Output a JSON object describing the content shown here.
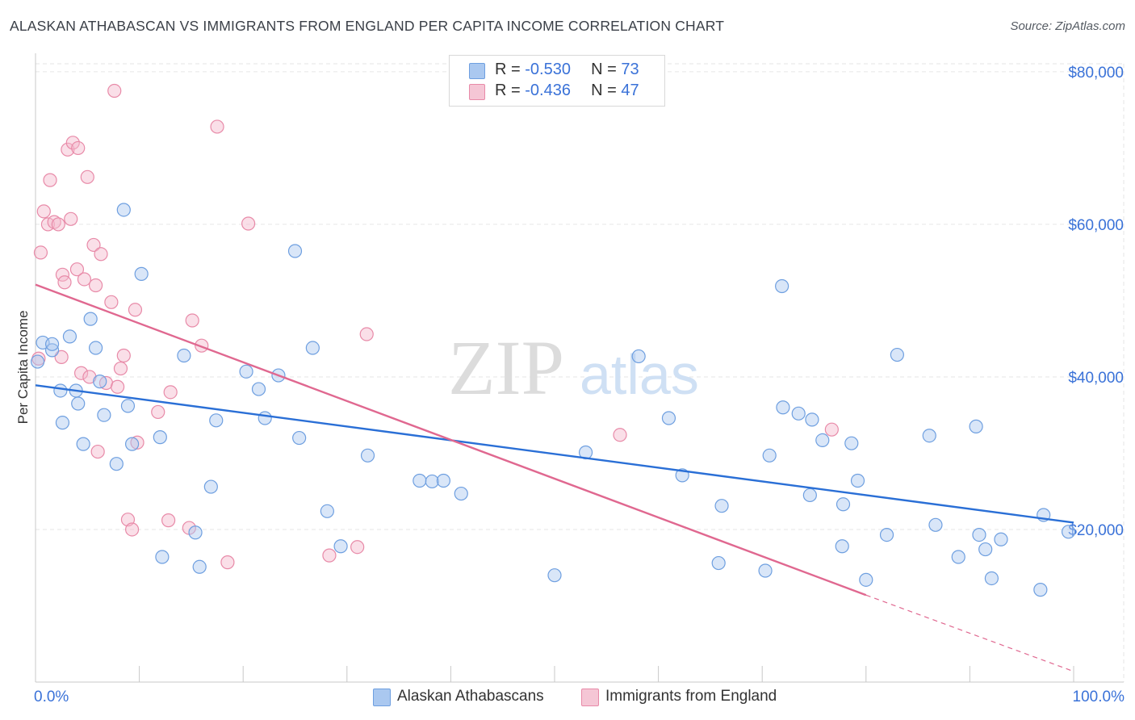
{
  "title": "ALASKAN ATHABASCAN VS IMMIGRANTS FROM ENGLAND PER CAPITA INCOME CORRELATION CHART",
  "source": "Source: ZipAtlas.com",
  "watermark": {
    "zip": "ZIP",
    "atlas": "atlas"
  },
  "legend": {
    "series1": {
      "r_label": "R = ",
      "r_value": "-0.530",
      "n_label": "N = ",
      "n_value": "73"
    },
    "series2": {
      "r_label": "R = ",
      "r_value": "-0.436",
      "n_label": "N = ",
      "n_value": "47"
    }
  },
  "colors": {
    "blue_fill": "#aac8f0",
    "blue_stroke": "#6e9fe0",
    "blue_line": "#2a6fd6",
    "pink_fill": "#f5b8cb",
    "pink_stroke": "#e88aa8",
    "pink_line": "#e06890",
    "axis_label": "#3a72d8",
    "grid": "#e6e6e6"
  },
  "chart_data": {
    "type": "scatter",
    "title": "ALASKAN ATHABASCAN VS IMMIGRANTS FROM ENGLAND PER CAPITA INCOME CORRELATION CHART",
    "xlabel": "",
    "ylabel": "Per Capita Income",
    "xlim": [
      0,
      100
    ],
    "ylim": [
      0,
      82000
    ],
    "x_tick_labels": [
      "0.0%",
      "100.0%"
    ],
    "y_ticks": [
      20000,
      40000,
      60000,
      80000
    ],
    "y_tick_labels": [
      "$20,000",
      "$40,000",
      "$60,000",
      "$80,000"
    ],
    "series": [
      {
        "name": "Alaskan Athabascans",
        "color": "blue",
        "trend": {
          "x": [
            0,
            100
          ],
          "y": [
            38900,
            20900
          ]
        },
        "points": [
          [
            0.2,
            42000
          ],
          [
            0.7,
            44500
          ],
          [
            1.6,
            43500
          ],
          [
            1.6,
            44300
          ],
          [
            2.4,
            38200
          ],
          [
            2.6,
            34000
          ],
          [
            3.3,
            45300
          ],
          [
            3.9,
            38200
          ],
          [
            4.1,
            36500
          ],
          [
            4.6,
            31200
          ],
          [
            5.3,
            47600
          ],
          [
            5.8,
            43800
          ],
          [
            6.2,
            39400
          ],
          [
            6.6,
            35000
          ],
          [
            7.8,
            28600
          ],
          [
            8.5,
            61900
          ],
          [
            8.9,
            36200
          ],
          [
            9.3,
            31200
          ],
          [
            10.2,
            53500
          ],
          [
            12.0,
            32100
          ],
          [
            12.2,
            16400
          ],
          [
            14.3,
            42800
          ],
          [
            15.4,
            19600
          ],
          [
            15.8,
            15100
          ],
          [
            16.9,
            25600
          ],
          [
            17.4,
            34300
          ],
          [
            20.3,
            40700
          ],
          [
            21.5,
            38400
          ],
          [
            22.1,
            34600
          ],
          [
            23.4,
            40200
          ],
          [
            25.0,
            56500
          ],
          [
            25.4,
            32000
          ],
          [
            26.7,
            43800
          ],
          [
            28.1,
            22400
          ],
          [
            29.4,
            17800
          ],
          [
            32.0,
            29700
          ],
          [
            37.0,
            26400
          ],
          [
            38.2,
            26300
          ],
          [
            39.3,
            26400
          ],
          [
            41.0,
            24700
          ],
          [
            50.0,
            14000
          ],
          [
            53.0,
            30100
          ],
          [
            58.1,
            42700
          ],
          [
            61.0,
            34600
          ],
          [
            62.3,
            27100
          ],
          [
            65.8,
            15600
          ],
          [
            66.1,
            23100
          ],
          [
            70.3,
            14600
          ],
          [
            70.7,
            29700
          ],
          [
            71.9,
            51900
          ],
          [
            72.0,
            36000
          ],
          [
            73.5,
            35200
          ],
          [
            74.6,
            24500
          ],
          [
            74.8,
            34400
          ],
          [
            75.8,
            31700
          ],
          [
            77.7,
            17800
          ],
          [
            77.8,
            23300
          ],
          [
            78.6,
            31300
          ],
          [
            79.2,
            26400
          ],
          [
            80.0,
            13400
          ],
          [
            82.0,
            19300
          ],
          [
            83.0,
            42900
          ],
          [
            86.1,
            32300
          ],
          [
            86.7,
            20600
          ],
          [
            88.9,
            16400
          ],
          [
            90.6,
            33500
          ],
          [
            90.9,
            19300
          ],
          [
            91.5,
            17400
          ],
          [
            92.1,
            13600
          ],
          [
            93.0,
            18700
          ],
          [
            96.8,
            12100
          ],
          [
            97.1,
            21900
          ],
          [
            99.5,
            19700
          ]
        ]
      },
      {
        "name": "Immigrants from England",
        "color": "pink",
        "trend": {
          "x": [
            0,
            80
          ],
          "y": [
            52100,
            11400
          ]
        },
        "trend_ext": {
          "x": [
            80,
            100
          ],
          "y": [
            11400,
            1400
          ]
        },
        "points": [
          [
            0.3,
            42400
          ],
          [
            0.5,
            56300
          ],
          [
            0.8,
            61700
          ],
          [
            1.2,
            60000
          ],
          [
            1.4,
            65800
          ],
          [
            1.8,
            60300
          ],
          [
            2.2,
            60000
          ],
          [
            2.5,
            42600
          ],
          [
            2.6,
            53400
          ],
          [
            2.8,
            52400
          ],
          [
            3.1,
            69800
          ],
          [
            3.4,
            60700
          ],
          [
            3.6,
            70700
          ],
          [
            4.0,
            54100
          ],
          [
            4.1,
            70000
          ],
          [
            4.4,
            40500
          ],
          [
            4.7,
            52800
          ],
          [
            5.0,
            66200
          ],
          [
            5.2,
            40000
          ],
          [
            5.6,
            57300
          ],
          [
            5.8,
            52000
          ],
          [
            6.0,
            30200
          ],
          [
            6.3,
            56100
          ],
          [
            6.8,
            39200
          ],
          [
            7.3,
            49800
          ],
          [
            7.6,
            77500
          ],
          [
            7.9,
            38700
          ],
          [
            8.2,
            41100
          ],
          [
            8.5,
            42800
          ],
          [
            8.9,
            21300
          ],
          [
            9.3,
            20000
          ],
          [
            9.6,
            48800
          ],
          [
            9.8,
            31400
          ],
          [
            11.8,
            35400
          ],
          [
            12.8,
            21200
          ],
          [
            13.0,
            38000
          ],
          [
            14.8,
            20200
          ],
          [
            15.1,
            47400
          ],
          [
            16.0,
            44100
          ],
          [
            17.5,
            72800
          ],
          [
            18.5,
            15700
          ],
          [
            20.5,
            60100
          ],
          [
            28.3,
            16600
          ],
          [
            31.0,
            17700
          ],
          [
            31.9,
            45600
          ],
          [
            56.3,
            32400
          ],
          [
            76.7,
            33100
          ]
        ]
      }
    ]
  },
  "bottom_legend": {
    "series1_label": "Alaskan Athabascans",
    "series2_label": "Immigrants from England"
  }
}
